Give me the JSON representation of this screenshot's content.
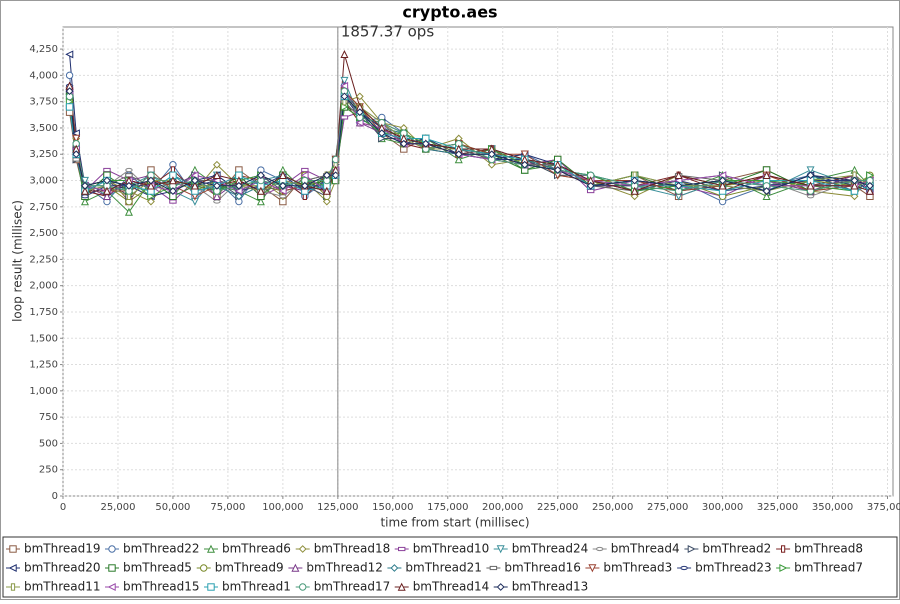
{
  "chart_data": {
    "type": "line",
    "title": "crypto.aes",
    "annotation": "1857.37 ops",
    "annotation_x": 125000,
    "x_label": "time from start (millisec)",
    "y_label": "loop result (millisec)",
    "xlim": [
      0,
      377500
    ],
    "ylim": [
      0,
      4460
    ],
    "grid": true,
    "xticks": [
      0,
      {
        "value": 25000,
        "label": "25,000"
      },
      {
        "value": 50000,
        "label": "50,000"
      },
      {
        "value": 75000,
        "label": "75,000"
      },
      {
        "value": 100000,
        "label": "100,000"
      },
      {
        "value": 125000,
        "label": "125,000"
      },
      {
        "value": 150000,
        "label": "150,000"
      },
      {
        "value": 175000,
        "label": "175,000"
      },
      {
        "value": 200000,
        "label": "200,000"
      },
      {
        "value": 225000,
        "label": "225,000"
      },
      {
        "value": 250000,
        "label": "250,000"
      },
      {
        "value": 275000,
        "label": "275,000"
      },
      {
        "value": 300000,
        "label": "300,000"
      },
      {
        "value": 325000,
        "label": "325,000"
      },
      {
        "value": 350000,
        "label": "350,000"
      },
      {
        "value": 375000,
        "label": "375,000"
      }
    ],
    "yticks": [
      0,
      250,
      500,
      750,
      {
        "value": 1000,
        "label": "1,000"
      },
      {
        "value": 1250,
        "label": "1,250"
      },
      {
        "value": 1500,
        "label": "1,500"
      },
      {
        "value": 1750,
        "label": "1,750"
      },
      {
        "value": 2000,
        "label": "2,000"
      },
      {
        "value": 2250,
        "label": "2,250"
      },
      {
        "value": 2500,
        "label": "2,500"
      },
      {
        "value": 2750,
        "label": "2,750"
      },
      {
        "value": 3000,
        "label": "3,000"
      },
      {
        "value": 3250,
        "label": "3,250"
      },
      {
        "value": 3500,
        "label": "3,500"
      },
      {
        "value": 3750,
        "label": "3,750"
      },
      {
        "value": 4000,
        "label": "4,000"
      },
      {
        "value": 4250,
        "label": "4,250"
      }
    ],
    "x": [
      3000,
      6000,
      10000,
      20000,
      30000,
      40000,
      50000,
      60000,
      70000,
      80000,
      90000,
      100000,
      110000,
      120000,
      124000,
      128000,
      135000,
      145000,
      155000,
      165000,
      180000,
      195000,
      210000,
      225000,
      240000,
      260000,
      280000,
      300000,
      320000,
      340000,
      360000,
      367000
    ],
    "series": [
      {
        "name": "bmThread19",
        "color": "#8a5a44",
        "marker": "square",
        "values": [
          3650,
          3200,
          2850,
          3050,
          2800,
          3100,
          2900,
          3000,
          2850,
          3100,
          2950,
          2800,
          3050,
          2900,
          3200,
          3700,
          3600,
          3450,
          3300,
          3400,
          3250,
          3300,
          3150,
          3200,
          2950,
          3050,
          2850,
          3000,
          3100,
          2900,
          2950,
          2850
        ]
      },
      {
        "name": "bmThread22",
        "color": "#4a6fa5",
        "marker": "circle",
        "values": [
          4000,
          3350,
          2950,
          2800,
          3050,
          2900,
          3150,
          2850,
          3000,
          2800,
          3100,
          3000,
          2850,
          3000,
          3050,
          3900,
          3550,
          3600,
          3450,
          3300,
          3350,
          3200,
          3250,
          3100,
          3050,
          2900,
          3000,
          2800,
          2950,
          3050,
          2900,
          3000
        ]
      },
      {
        "name": "bmThread6",
        "color": "#3f8f3f",
        "marker": "triangle-up",
        "values": [
          3850,
          3250,
          2800,
          2900,
          2700,
          3000,
          2850,
          3100,
          2950,
          2900,
          2800,
          3100,
          2900,
          3050,
          3150,
          3850,
          3700,
          3400,
          3350,
          3400,
          3200,
          3300,
          3100,
          3150,
          2950,
          3000,
          2900,
          3050,
          2850,
          3000,
          3100,
          2950
        ]
      },
      {
        "name": "bmThread18",
        "color": "#8d8d3a",
        "marker": "diamond",
        "values": [
          3750,
          3400,
          2950,
          3000,
          2900,
          2800,
          3050,
          2900,
          3150,
          2950,
          3000,
          2850,
          3000,
          2800,
          3000,
          3750,
          3800,
          3550,
          3500,
          3300,
          3400,
          3150,
          3200,
          3050,
          3000,
          2850,
          3050,
          2950,
          3000,
          2900,
          2850,
          3050
        ]
      },
      {
        "name": "bmThread10",
        "color": "#8a3f9a",
        "marker": "rect-h",
        "values": [
          3700,
          3300,
          2900,
          3100,
          3000,
          2950,
          2800,
          3000,
          2900,
          3050,
          2850,
          2950,
          3100,
          3000,
          3100,
          3600,
          3650,
          3500,
          3400,
          3350,
          3300,
          3250,
          3150,
          3200,
          2900,
          3000,
          2950,
          2850,
          3050,
          2950,
          3000,
          2900
        ]
      },
      {
        "name": "bmThread24",
        "color": "#3a8f9a",
        "marker": "triangle-down",
        "values": [
          3800,
          3250,
          3000,
          2850,
          2950,
          3050,
          2900,
          2800,
          3050,
          2900,
          3000,
          3050,
          2900,
          2950,
          3200,
          3950,
          3600,
          3450,
          3350,
          3400,
          3250,
          3300,
          3200,
          3100,
          3000,
          2950,
          2850,
          3000,
          2900,
          3100,
          2950,
          3000
        ]
      },
      {
        "name": "bmThread4",
        "color": "#888888",
        "marker": "ellipse-h",
        "values": [
          3900,
          3350,
          2850,
          2950,
          3100,
          2900,
          3000,
          2950,
          2800,
          3000,
          2900,
          2850,
          3000,
          3050,
          3050,
          3800,
          3700,
          3550,
          3450,
          3300,
          3350,
          3200,
          3150,
          3150,
          2950,
          3050,
          2950,
          2900,
          3000,
          2850,
          3000,
          2950
        ]
      },
      {
        "name": "bmThread2",
        "color": "#3d4d66",
        "marker": "triangle-right",
        "values": [
          3850,
          3200,
          2950,
          3000,
          2850,
          3000,
          2950,
          3050,
          3000,
          2850,
          3050,
          2900,
          2950,
          2850,
          3150,
          3850,
          3650,
          3400,
          3400,
          3350,
          3300,
          3250,
          3200,
          3050,
          3050,
          2900,
          3000,
          3050,
          2950,
          3000,
          2900,
          3050
        ]
      },
      {
        "name": "bmThread8",
        "color": "#7a2020",
        "marker": "rect-v",
        "values": [
          3700,
          3400,
          2900,
          2850,
          3000,
          2950,
          3100,
          2900,
          2950,
          3000,
          2900,
          3000,
          2850,
          3050,
          3100,
          3750,
          3550,
          3500,
          3350,
          3300,
          3250,
          3300,
          3150,
          3100,
          2950,
          2950,
          3050,
          2900,
          3050,
          2950,
          3050,
          2900
        ]
      },
      {
        "name": "bmThread20",
        "color": "#1f2f6f",
        "marker": "triangle-left",
        "values": [
          4200,
          3450,
          2950,
          2900,
          2950,
          2850,
          2900,
          3000,
          3050,
          2900,
          3000,
          2950,
          3000,
          2900,
          3050,
          3800,
          3600,
          3550,
          3400,
          3350,
          3300,
          3200,
          3250,
          3150,
          3000,
          2900,
          2950,
          3000,
          2900,
          3050,
          2950,
          3000
        ]
      },
      {
        "name": "bmThread5",
        "color": "#2a7a2a",
        "marker": "square",
        "values": [
          3800,
          3300,
          2850,
          3050,
          2900,
          3000,
          2850,
          2950,
          2900,
          3050,
          2850,
          3050,
          2950,
          3000,
          3000,
          3700,
          3650,
          3450,
          3450,
          3300,
          3350,
          3250,
          3100,
          3200,
          2950,
          3050,
          2900,
          2950,
          3100,
          2900,
          3000,
          2950
        ]
      },
      {
        "name": "bmThread9",
        "color": "#7a8a2a",
        "marker": "circle",
        "values": [
          3750,
          3250,
          2900,
          2950,
          2800,
          2950,
          3000,
          2900,
          3000,
          2950,
          2950,
          2900,
          3050,
          2850,
          3100,
          3850,
          3700,
          3500,
          3350,
          3400,
          3250,
          3200,
          3200,
          3100,
          3000,
          2950,
          3000,
          2850,
          2950,
          3000,
          2950,
          3050
        ]
      },
      {
        "name": "bmThread12",
        "color": "#7a3a8a",
        "marker": "triangle-up",
        "values": [
          3900,
          3350,
          2950,
          2850,
          3000,
          3050,
          2950,
          3050,
          2850,
          3000,
          3050,
          2950,
          2900,
          3000,
          3150,
          3900,
          3550,
          3450,
          3400,
          3350,
          3300,
          3300,
          3150,
          3150,
          2950,
          3000,
          2900,
          3000,
          3000,
          2900,
          3050,
          2900
        ]
      },
      {
        "name": "bmThread21",
        "color": "#2a7a8a",
        "marker": "diamond",
        "values": [
          3800,
          3300,
          2900,
          3000,
          2950,
          2900,
          3050,
          2950,
          2950,
          2850,
          2950,
          3000,
          2950,
          2950,
          3050,
          3800,
          3650,
          3500,
          3450,
          3300,
          3250,
          3250,
          3200,
          3100,
          3050,
          2950,
          2950,
          2950,
          2900,
          3050,
          2900,
          3000
        ]
      },
      {
        "name": "bmThread16",
        "color": "#666666",
        "marker": "rect-h",
        "values": [
          3700,
          3200,
          2950,
          2950,
          3050,
          2950,
          2900,
          3000,
          3000,
          2950,
          2900,
          2950,
          3000,
          3050,
          3100,
          3750,
          3600,
          3550,
          3350,
          3350,
          3300,
          3200,
          3150,
          3150,
          2950,
          2900,
          3050,
          3000,
          2950,
          2950,
          3000,
          2950
        ]
      },
      {
        "name": "bmThread3",
        "color": "#9a4030",
        "marker": "triangle-down",
        "values": [
          3850,
          3400,
          2900,
          2900,
          2900,
          3000,
          2950,
          2850,
          2950,
          3050,
          3000,
          2900,
          2950,
          2900,
          3200,
          3850,
          3700,
          3450,
          3400,
          3300,
          3350,
          3250,
          3250,
          3050,
          3000,
          3000,
          2900,
          2950,
          3050,
          2900,
          2950,
          3000
        ]
      },
      {
        "name": "bmThread23",
        "color": "#2a3a7a",
        "marker": "ellipse-h",
        "values": [
          3900,
          3300,
          2850,
          2950,
          2950,
          2950,
          3000,
          2950,
          3000,
          2900,
          2950,
          3050,
          2900,
          3000,
          3050,
          3800,
          3650,
          3500,
          3350,
          3400,
          3250,
          3200,
          3200,
          3150,
          2950,
          2950,
          3000,
          2900,
          2950,
          3000,
          3000,
          2900
        ]
      },
      {
        "name": "bmThread7",
        "color": "#3a9a3a",
        "marker": "triangle-right",
        "values": [
          3750,
          3250,
          2950,
          3000,
          3000,
          2850,
          2950,
          3000,
          2900,
          3000,
          3050,
          2950,
          3000,
          2950,
          3100,
          3700,
          3600,
          3450,
          3450,
          3350,
          3300,
          3300,
          3150,
          3100,
          3050,
          2900,
          2950,
          3000,
          3000,
          2950,
          2900,
          3050
        ]
      },
      {
        "name": "bmThread11",
        "color": "#8a9a4a",
        "marker": "rect-v",
        "values": [
          3800,
          3350,
          2900,
          2950,
          2850,
          3000,
          3000,
          2950,
          2950,
          2950,
          2900,
          3000,
          2950,
          3050,
          3150,
          3750,
          3700,
          3550,
          3400,
          3300,
          3300,
          3250,
          3200,
          3150,
          2950,
          3050,
          2950,
          2950,
          2900,
          3000,
          3050,
          2950
        ]
      },
      {
        "name": "bmThread15",
        "color": "#9a4aaa",
        "marker": "triangle-left",
        "values": [
          3850,
          3300,
          2950,
          2900,
          3000,
          2950,
          2900,
          3050,
          3000,
          2900,
          3000,
          2900,
          3050,
          2900,
          3100,
          3900,
          3550,
          3500,
          3350,
          3350,
          3250,
          3200,
          3150,
          3100,
          3000,
          2950,
          3000,
          3050,
          2950,
          2950,
          2950,
          3000
        ]
      },
      {
        "name": "bmThread1",
        "color": "#2aa0b0",
        "marker": "square",
        "values": [
          3700,
          3250,
          2900,
          3000,
          2950,
          2900,
          3050,
          2900,
          2950,
          3050,
          2950,
          3000,
          2900,
          2950,
          3050,
          3800,
          3650,
          3450,
          3400,
          3400,
          3300,
          3250,
          3200,
          3150,
          2950,
          3000,
          2950,
          2900,
          3000,
          3000,
          2900,
          2950
        ]
      },
      {
        "name": "bmThread17",
        "color": "#4a9a7a",
        "marker": "circle",
        "values": [
          3800,
          3350,
          2950,
          2950,
          2900,
          3050,
          2950,
          3000,
          2900,
          2950,
          3000,
          2950,
          3000,
          3000,
          3200,
          3850,
          3600,
          3550,
          3450,
          3300,
          3350,
          3200,
          3150,
          3100,
          3050,
          2950,
          2900,
          3000,
          2950,
          2900,
          3000,
          3000
        ]
      },
      {
        "name": "bmThread14",
        "color": "#6a2020",
        "marker": "triangle-up",
        "values": [
          3900,
          3300,
          2900,
          2900,
          3000,
          2950,
          3000,
          2950,
          3050,
          3000,
          2900,
          3050,
          2950,
          2900,
          3100,
          4200,
          3700,
          3500,
          3400,
          3350,
          3300,
          3300,
          3200,
          3150,
          3000,
          2900,
          3050,
          2950,
          3050,
          2950,
          2950,
          2900
        ]
      },
      {
        "name": "bmThread13",
        "color": "#1a2a5a",
        "marker": "diamond",
        "values": [
          3850,
          3250,
          2950,
          3000,
          2950,
          3000,
          2900,
          3000,
          2950,
          2950,
          3050,
          2950,
          2950,
          3050,
          3050,
          3800,
          3650,
          3450,
          3350,
          3350,
          3250,
          3250,
          3150,
          3100,
          2950,
          3000,
          2950,
          3000,
          2900,
          3050,
          3000,
          2950
        ]
      }
    ]
  }
}
